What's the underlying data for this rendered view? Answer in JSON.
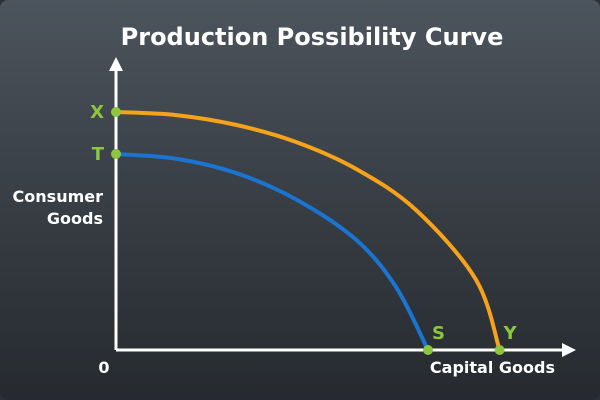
{
  "chart_data": {
    "type": "line",
    "title": "Production Possibility Curve",
    "xlabel": "Capital Goods",
    "ylabel_lines": [
      "Consumer",
      "Goods"
    ],
    "origin_label": "0",
    "xlim": [
      0,
      10
    ],
    "ylim": [
      0,
      10
    ],
    "grid": false,
    "legend": "none",
    "series": [
      {
        "key": "outer",
        "color": "#f7a21b",
        "points": [
          [
            0,
            8.5
          ],
          [
            1.5,
            8.39
          ],
          [
            3,
            8.04
          ],
          [
            4.5,
            7.43
          ],
          [
            6,
            6.47
          ],
          [
            7.5,
            5.0
          ],
          [
            9,
            2.51
          ],
          [
            9.59,
            0
          ]
        ]
      },
      {
        "key": "inner",
        "color": "#1a75d2",
        "points": [
          [
            0,
            7.0
          ],
          [
            1.5,
            6.83
          ],
          [
            3,
            6.32
          ],
          [
            4.5,
            5.38
          ],
          [
            6,
            3.94
          ],
          [
            7,
            2.25
          ],
          [
            7.8,
            0
          ]
        ]
      }
    ],
    "points": [
      {
        "label": "X",
        "x": 0,
        "y": 8.5,
        "label_side": "left"
      },
      {
        "label": "T",
        "x": 0,
        "y": 7.0,
        "label_side": "left"
      },
      {
        "label": "S",
        "x": 7.8,
        "y": 0,
        "label_side": "above-right"
      },
      {
        "label": "Y",
        "x": 9.59,
        "y": 0,
        "label_side": "above-right"
      }
    ],
    "colors": {
      "axes": "#ffffff",
      "point_fill": "#8cc63f",
      "point_label": "#8cc63f"
    }
  }
}
